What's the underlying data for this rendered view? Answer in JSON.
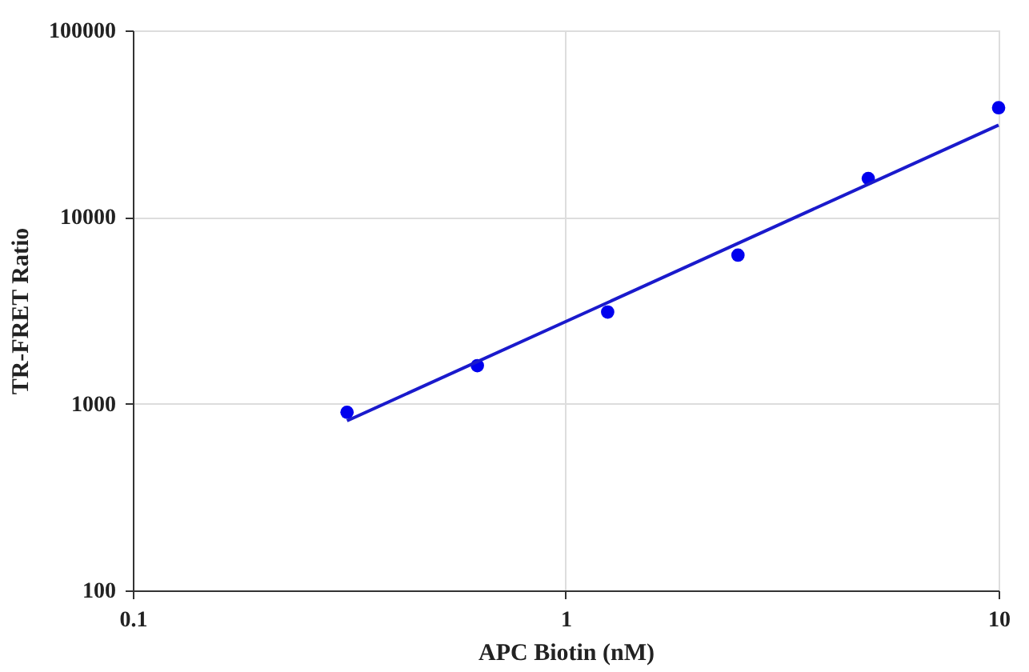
{
  "chart_data": {
    "type": "scatter",
    "xlabel": "APC Biotin (nM)",
    "ylabel": "TR-FRET Ratio",
    "log": "xy",
    "grid": true,
    "marker": "circle",
    "xlim": [
      0.1,
      10
    ],
    "xticks": [
      0.1,
      1,
      10
    ],
    "ylim": [
      100,
      100000
    ],
    "yticks": [
      100,
      1000,
      10000,
      100000
    ],
    "series": [
      {
        "color": "#0000ee",
        "x": [
          0.3125,
          0.625,
          1.25,
          2.5,
          5,
          10
        ],
        "values": [
          900,
          1600,
          3100,
          6250,
          16100,
          38500
        ]
      },
      {
        "type": "line",
        "color": "#1a1acc",
        "x": [
          0.3125,
          10
        ],
        "values": [
          810,
          31100
        ],
        "marker": "none",
        "line_style": "solid"
      }
    ]
  }
}
